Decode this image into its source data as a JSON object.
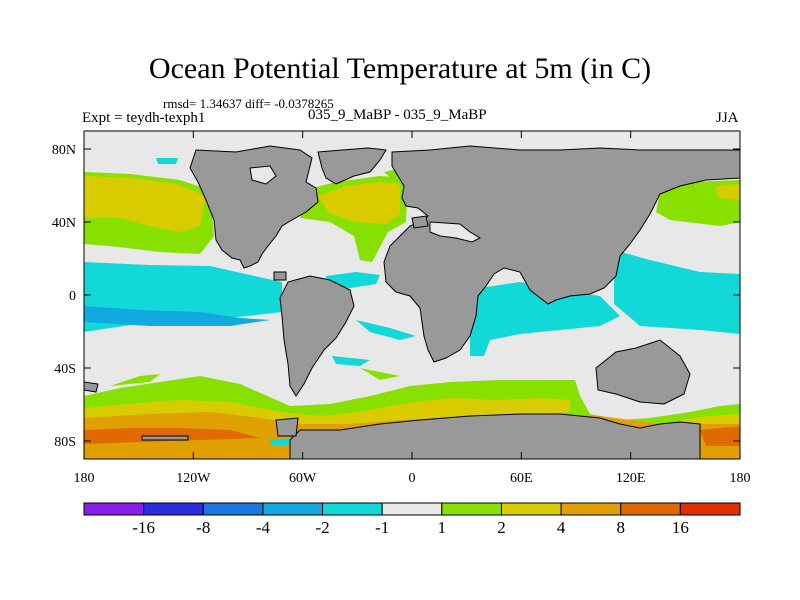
{
  "title": "Ocean Potential Temperature at 5m (in C)",
  "stats": "rmsd= 1.34637 diff= -0.0378265",
  "experiment": "Expt = teydh-texph1",
  "runs": "035_9_MaBP - 035_9_MaBP",
  "season": "JJA",
  "axes": {
    "lat_labels": [
      "80N",
      "40N",
      "0",
      "40S",
      "80S"
    ],
    "lon_labels": [
      "180",
      "120W",
      "60W",
      "0",
      "60E",
      "120E",
      "180"
    ]
  },
  "colorbar": {
    "levels": [
      "-16",
      "-8",
      "-4",
      "-2",
      "-1",
      "1",
      "2",
      "4",
      "8",
      "16"
    ],
    "colors": [
      "#8a1fe8",
      "#2a2de0",
      "#1a78e0",
      "#12a8e0",
      "#12d8d8",
      "#e8e8e8",
      "#88e000",
      "#d8cc00",
      "#e0a000",
      "#e06a00",
      "#e03000"
    ]
  },
  "colors": {
    "land": "#999999",
    "neutral": "#e8e8e8",
    "cyan": "#12d8d8",
    "lightblue": "#12a8e0",
    "green": "#88e000",
    "yellow": "#d8cc00",
    "orange": "#e0a000",
    "darkorange": "#e06a00"
  }
}
